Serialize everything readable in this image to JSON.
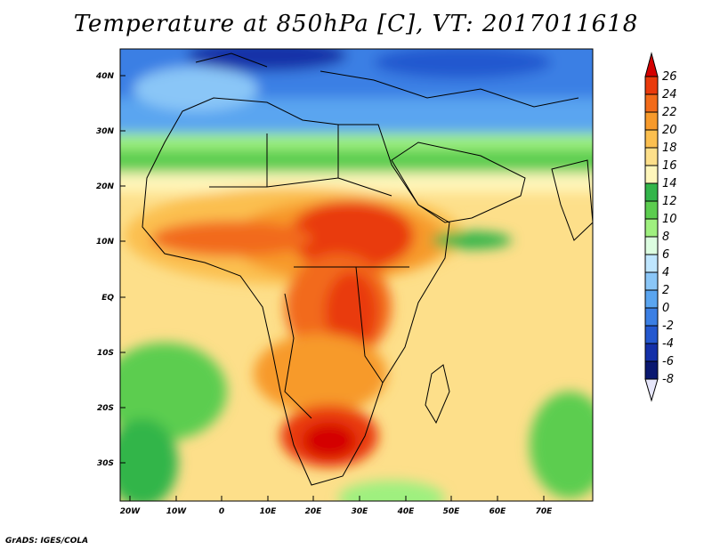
{
  "title": "Temperature at 850hPa [C], VT: 2017011618",
  "credit": "GrADS: IGES/COLA",
  "lat_labels": [
    "40N",
    "30N",
    "20N",
    "10N",
    "EQ",
    "10S",
    "20S",
    "30S"
  ],
  "lon_labels": [
    "20W",
    "10W",
    "0",
    "10E",
    "20E",
    "30E",
    "40E",
    "50E",
    "60E",
    "70E"
  ],
  "colorbar": {
    "labels": [
      "26",
      "24",
      "22",
      "20",
      "18",
      "16",
      "14",
      "12",
      "10",
      "8",
      "6",
      "4",
      "2",
      "0",
      "-2",
      "-4",
      "-6",
      "-8"
    ],
    "colors": [
      "#d40000",
      "#e93a0c",
      "#f26b1a",
      "#f79a2b",
      "#fbbf4f",
      "#fddf8a",
      "#fff6bb",
      "#33b54a",
      "#5ccd4f",
      "#9ff07f",
      "#dcfde0",
      "#bfe6ff",
      "#8ac6f7",
      "#5aa5f0",
      "#3b7fe4",
      "#2458cf",
      "#1430a8",
      "#0a1870",
      "#e6e6fa"
    ]
  }
}
